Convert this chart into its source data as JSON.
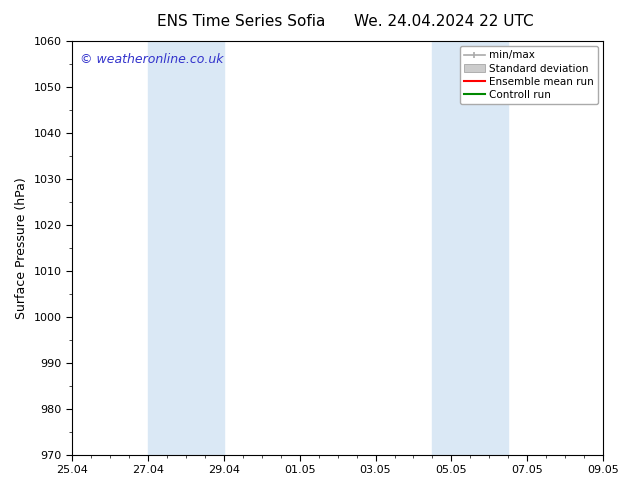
{
  "title_left": "ENS Time Series Sofia",
  "title_right": "We. 24.04.2024 22 UTC",
  "ylabel": "Surface Pressure (hPa)",
  "ylim": [
    970,
    1060
  ],
  "yticks": [
    970,
    980,
    990,
    1000,
    1010,
    1020,
    1030,
    1040,
    1050,
    1060
  ],
  "xtick_labels": [
    "25.04",
    "27.04",
    "29.04",
    "01.05",
    "03.05",
    "05.05",
    "07.05",
    "09.05"
  ],
  "xtick_positions": [
    0,
    2,
    4,
    6,
    8,
    10,
    12,
    14
  ],
  "x_total": 14,
  "background_color": "#ffffff",
  "plot_bg_color": "#ffffff",
  "shaded_regions": [
    {
      "x_start": 2,
      "x_end": 4,
      "color": "#dae8f5"
    },
    {
      "x_start": 9.5,
      "x_end": 11.5,
      "color": "#dae8f5"
    }
  ],
  "watermark_text": "© weatheronline.co.uk",
  "watermark_color": "#3333cc",
  "legend_minmax_color": "#aaaaaa",
  "legend_std_color": "#cccccc",
  "legend_ens_color": "#ff0000",
  "legend_ctrl_color": "#008800",
  "spine_color": "#000000",
  "tick_color": "#000000",
  "title_fontsize": 11,
  "ylabel_fontsize": 9,
  "tick_fontsize": 8,
  "watermark_fontsize": 9
}
